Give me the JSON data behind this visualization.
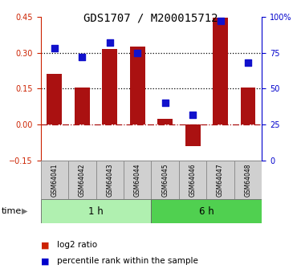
{
  "title": "GDS1707 / M200015712",
  "samples": [
    "GSM64041",
    "GSM64042",
    "GSM64043",
    "GSM64044",
    "GSM64045",
    "GSM64046",
    "GSM64047",
    "GSM64048"
  ],
  "log2_ratio": [
    0.21,
    0.155,
    0.315,
    0.325,
    0.025,
    -0.09,
    0.445,
    0.155
  ],
  "percentile_rank": [
    78,
    72,
    82,
    75,
    40,
    32,
    97,
    68
  ],
  "groups": [
    {
      "label": "1 h",
      "start": 0,
      "end": 4,
      "color": "#b0f0b0"
    },
    {
      "label": "6 h",
      "start": 4,
      "end": 8,
      "color": "#50d050"
    }
  ],
  "ylim_left": [
    -0.15,
    0.45
  ],
  "ylim_right": [
    0,
    100
  ],
  "yticks_left": [
    -0.15,
    0.0,
    0.15,
    0.3,
    0.45
  ],
  "yticks_right": [
    0,
    25,
    50,
    75,
    100
  ],
  "ytick_labels_right": [
    "0",
    "25",
    "50",
    "75",
    "100%"
  ],
  "hlines": [
    0.15,
    0.3
  ],
  "bar_color": "#aa1111",
  "dot_color": "#1111cc",
  "bar_width": 0.55,
  "background_color": "#ffffff",
  "legend_items": [
    {
      "label": "log2 ratio",
      "color": "#cc2200"
    },
    {
      "label": "percentile rank within the sample",
      "color": "#0000cc"
    }
  ],
  "time_label": "time",
  "ylabel_left_color": "#cc2200",
  "ylabel_right_color": "#0000cc",
  "title_fontsize": 10,
  "tick_fontsize": 7,
  "sample_fontsize": 5.5,
  "group_fontsize": 8.5,
  "legend_fontsize": 7.5
}
